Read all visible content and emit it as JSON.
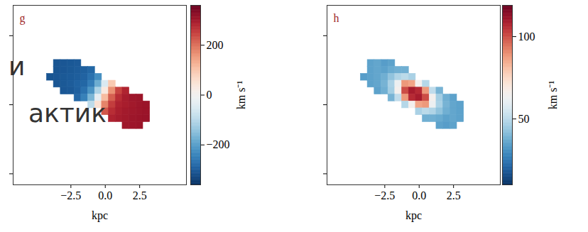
{
  "chart_data": [
    {
      "type": "heatmap",
      "title": "g",
      "xlabel": "kpc",
      "xlim": [
        -6.7,
        5.9
      ],
      "ylim": [
        -5.8,
        7.2
      ],
      "xticks": [
        {
          "value": -2.5,
          "label": "−2.5"
        },
        {
          "value": 0,
          "label": "0.0"
        },
        {
          "value": 2.5,
          "label": "2.5"
        }
      ],
      "yticks": [
        -5,
        0,
        5
      ],
      "tick_labels": "x",
      "x": [
        -4,
        -3.5,
        -3,
        -2.5,
        -2,
        -1.5,
        -1,
        -0.5,
        0,
        0.5,
        1,
        1.5,
        2,
        2.5,
        3
      ],
      "y": [
        3,
        2.5,
        2,
        1.5,
        1,
        0.5,
        0,
        -0.5,
        -1,
        -1.5
      ],
      "values": [
        [
          null,
          -310,
          -308,
          -306,
          -303,
          null,
          null,
          null,
          null,
          null,
          null,
          null,
          null,
          null,
          null
        ],
        [
          null,
          -310,
          -308,
          -305,
          -300,
          -295,
          -285,
          null,
          null,
          null,
          null,
          null,
          null,
          null,
          null
        ],
        [
          -310,
          -308,
          -305,
          -302,
          -298,
          -290,
          -270,
          -225,
          null,
          null,
          null,
          null,
          null,
          null,
          null
        ],
        [
          null,
          -308,
          -305,
          -300,
          -292,
          -285,
          -252,
          -178,
          -52,
          93,
          null,
          null,
          null,
          null,
          null
        ],
        [
          null,
          null,
          -307,
          -304,
          -294,
          -270,
          -216,
          -112,
          34,
          164,
          245,
          284,
          null,
          null,
          null
        ],
        [
          null,
          null,
          null,
          null,
          -284,
          -245,
          -164,
          -34,
          112,
          216,
          270,
          294,
          304,
          307,
          null
        ],
        [
          null,
          null,
          null,
          null,
          null,
          null,
          -93,
          52,
          178,
          252,
          285,
          292,
          300,
          305,
          308
        ],
        [
          null,
          null,
          null,
          null,
          null,
          null,
          null,
          null,
          225,
          270,
          290,
          298,
          302,
          305,
          308
        ],
        [
          null,
          null,
          null,
          null,
          null,
          null,
          null,
          null,
          null,
          285,
          295,
          300,
          305,
          308,
          310
        ],
        [
          null,
          null,
          null,
          null,
          null,
          null,
          null,
          null,
          null,
          null,
          null,
          303,
          306,
          308,
          null
        ]
      ],
      "colorbar": {
        "label": "km s⁻¹",
        "range": [
          -360,
          360
        ],
        "ticks": [
          {
            "value": -200,
            "label": "−200"
          },
          0,
          200
        ]
      },
      "annotations": [
        "и",
        "актик"
      ]
    },
    {
      "type": "heatmap",
      "title": "h",
      "xlabel": "kpc",
      "xlim": [
        -6.7,
        5.9
      ],
      "ylim": [
        -5.8,
        7.2
      ],
      "xticks": [
        {
          "value": -2.5,
          "label": "−2.5"
        },
        {
          "value": 0,
          "label": "0.0"
        },
        {
          "value": 2.5,
          "label": "2.5"
        }
      ],
      "yticks": [
        -5,
        0,
        5
      ],
      "tick_labels": "x",
      "x": [
        -4,
        -3.5,
        -3,
        -2.5,
        -2,
        -1.5,
        -1,
        -0.5,
        0,
        0.5,
        1,
        1.5,
        2,
        2.5,
        3
      ],
      "y": [
        3,
        2.5,
        2,
        1.5,
        1,
        0.5,
        0,
        -0.5,
        -1,
        -1.5
      ],
      "values": [
        [
          null,
          35,
          36,
          34,
          35,
          null,
          null,
          null,
          null,
          null,
          null,
          null,
          null,
          null,
          null
        ],
        [
          null,
          35,
          36,
          35,
          37,
          38,
          38,
          null,
          null,
          null,
          null,
          null,
          null,
          null,
          null
        ],
        [
          34,
          35,
          36,
          38,
          43,
          48,
          50,
          47,
          null,
          null,
          null,
          null,
          null,
          null,
          null
        ],
        [
          null,
          35,
          36,
          39,
          47,
          62,
          88,
          86,
          65,
          49,
          null,
          null,
          null,
          null,
          null
        ],
        [
          null,
          null,
          35,
          38,
          46,
          65,
          100,
          109,
          106,
          88,
          51,
          39,
          null,
          null,
          null
        ],
        [
          null,
          null,
          null,
          null,
          39,
          51,
          88,
          106,
          109,
          100,
          65,
          46,
          38,
          35,
          null
        ],
        [
          null,
          null,
          null,
          null,
          null,
          null,
          49,
          65,
          86,
          88,
          62,
          47,
          39,
          36,
          35
        ],
        [
          null,
          null,
          null,
          null,
          null,
          null,
          null,
          null,
          47,
          50,
          48,
          43,
          38,
          36,
          35
        ],
        [
          null,
          null,
          null,
          null,
          null,
          null,
          null,
          null,
          null,
          38,
          38,
          37,
          35,
          36,
          35
        ],
        [
          null,
          null,
          null,
          null,
          null,
          null,
          null,
          null,
          null,
          null,
          null,
          35,
          34,
          35,
          null
        ]
      ],
      "colorbar": {
        "label": "km s⁻¹",
        "range": [
          10,
          119
        ],
        "ticks": [
          50,
          100
        ]
      }
    }
  ]
}
